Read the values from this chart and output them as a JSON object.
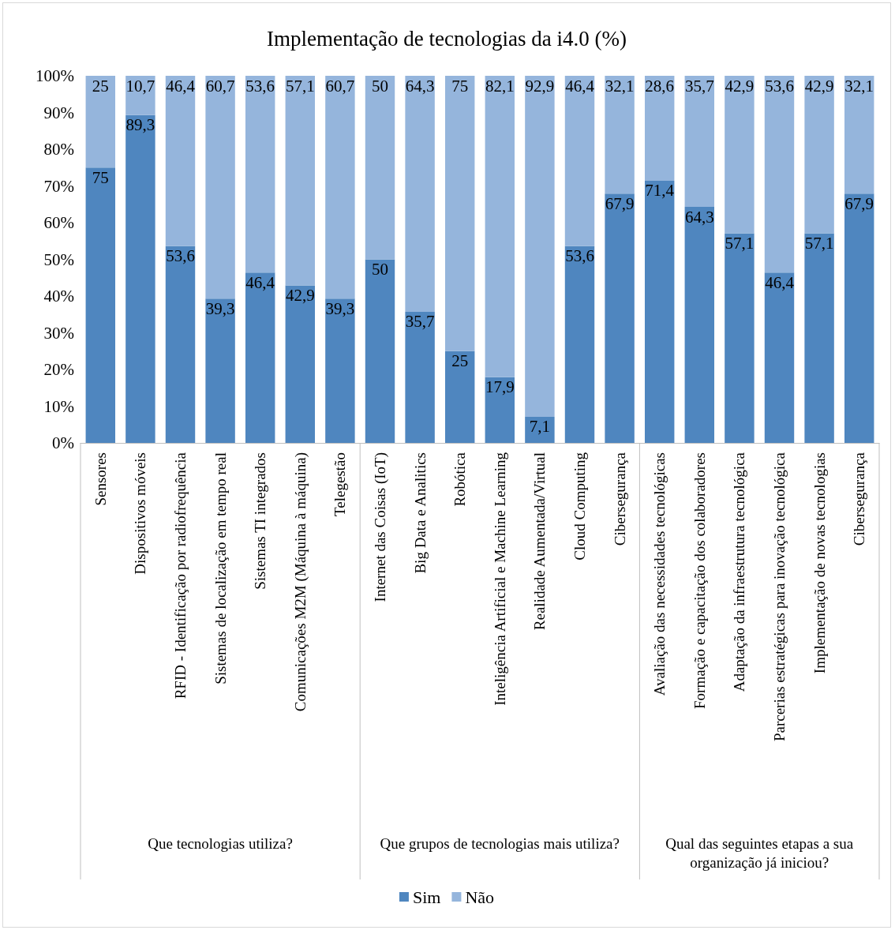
{
  "chart_data": {
    "type": "bar",
    "stacked": true,
    "title": "Implementação de tecnologias da i4.0 (%)",
    "categories": [
      "Sensores",
      "Dispositivos móveis",
      "RFID - Identificação por radiofrequência",
      "Sistemas de localização em tempo real",
      "Sistemas TI integrados",
      "Comunicações M2M (Máquina à máquina)",
      "Telegestão",
      "Internet das Coisas (IoT)",
      "Big Data e Analitics",
      "Robótica",
      "Inteligência Artificial e Machine Learning",
      "Realidade Aumentada/Virtual",
      "Cloud Computing",
      "Cibersegurança",
      "Avaliação das necessidades tecnológicas",
      "Formação e capacitação dos colaboradores",
      "Adaptação da infraestrutura tecnológica",
      "Parcerias estratégicas para inovação tecnológica",
      "Implementação de novas tecnologias",
      "Cibersegurança"
    ],
    "series": [
      {
        "name": "Sim",
        "color": "#4f86bf",
        "values": [
          75,
          89.3,
          53.6,
          39.3,
          46.4,
          42.9,
          39.3,
          50,
          35.7,
          25,
          17.9,
          7.1,
          53.6,
          67.9,
          71.4,
          64.3,
          57.1,
          46.4,
          57.1,
          67.9
        ],
        "value_labels": [
          "75",
          "89,3",
          "53,6",
          "39,3",
          "46,4",
          "42,9",
          "39,3",
          "50",
          "35,7",
          "25",
          "17,9",
          "7,1",
          "53,6",
          "67,9",
          "71,4",
          "64,3",
          "57,1",
          "46,4",
          "57,1",
          "67,9"
        ]
      },
      {
        "name": "Não",
        "color": "#95b5dc",
        "values": [
          25,
          10.7,
          46.4,
          60.7,
          53.6,
          57.1,
          60.7,
          50,
          64.3,
          75,
          82.1,
          92.9,
          46.4,
          32.1,
          28.6,
          35.7,
          42.9,
          53.6,
          42.9,
          32.1
        ],
        "value_labels": [
          "25",
          "10,7",
          "46,4",
          "60,7",
          "53,6",
          "57,1",
          "60,7",
          "50",
          "64,3",
          "75",
          "82,1",
          "92,9",
          "46,4",
          "32,1",
          "28,6",
          "35,7",
          "42,9",
          "53,6",
          "42,9",
          "32,1"
        ]
      }
    ],
    "ylim": [
      0,
      100
    ],
    "yticks": [
      {
        "value": 0,
        "label": "0%"
      },
      {
        "value": 10,
        "label": "10%"
      },
      {
        "value": 20,
        "label": "20%"
      },
      {
        "value": 30,
        "label": "30%"
      },
      {
        "value": 40,
        "label": "40%"
      },
      {
        "value": 50,
        "label": "50%"
      },
      {
        "value": 60,
        "label": "60%"
      },
      {
        "value": 70,
        "label": "70%"
      },
      {
        "value": 80,
        "label": "80%"
      },
      {
        "value": 90,
        "label": "90%"
      },
      {
        "value": 100,
        "label": "100%"
      }
    ],
    "grid": false,
    "legend": "bottom",
    "annotations": [
      "Que tecnologias utiliza?",
      "Que grupos de tecnologias mais utiliza?",
      "Qual das seguintes etapas a sua organização já iniciou?"
    ]
  }
}
